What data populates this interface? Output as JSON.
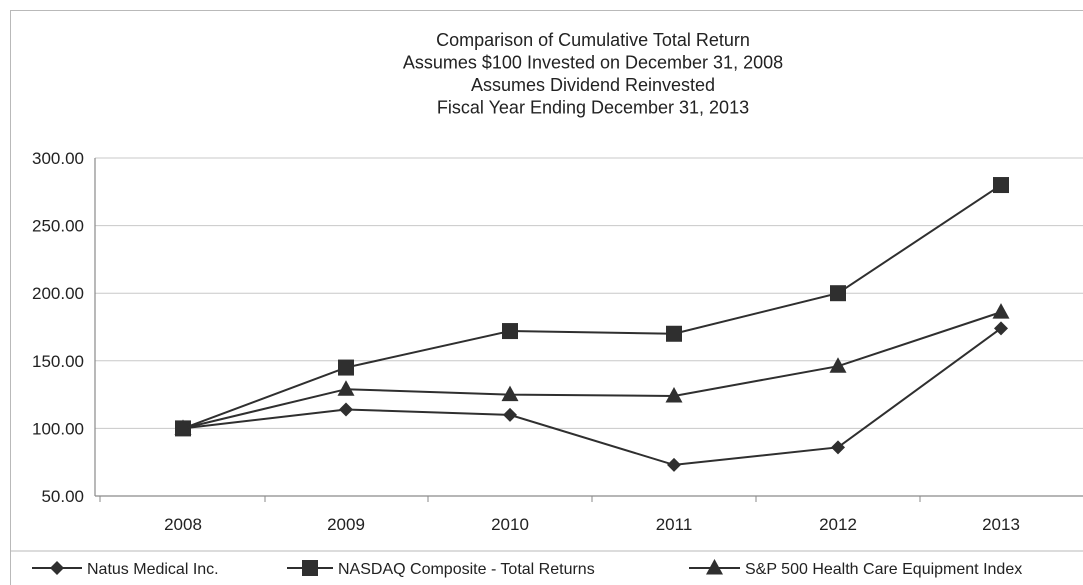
{
  "chart_data": {
    "type": "line",
    "title_lines": [
      "Comparison of Cumulative Total Return",
      "Assumes $100 Invested on December 31, 2008",
      "Assumes Dividend Reinvested",
      "Fiscal Year Ending December 31, 2013"
    ],
    "x": [
      "2008",
      "2009",
      "2010",
      "2011",
      "2012",
      "2013"
    ],
    "y_ticks": [
      "300.00",
      "250.00",
      "200.00",
      "150.00",
      "100.00",
      "50.00"
    ],
    "ylim": [
      50,
      300
    ],
    "grid": "horizontal",
    "legend_position": "bottom",
    "colors": {
      "line": "#2f2f2f",
      "grid": "#c8c8c8",
      "axis": "#8a8a8a"
    },
    "series": [
      {
        "name": "Natus Medical Inc.",
        "marker": "diamond",
        "values": [
          100,
          114,
          110,
          73,
          86,
          174
        ]
      },
      {
        "name": "NASDAQ Composite - Total Returns",
        "marker": "square",
        "values": [
          100,
          145,
          172,
          170,
          200,
          280
        ]
      },
      {
        "name": "S&P 500 Health Care Equipment Index",
        "marker": "triangle",
        "values": [
          100,
          129,
          125,
          124,
          146,
          186
        ]
      }
    ]
  }
}
